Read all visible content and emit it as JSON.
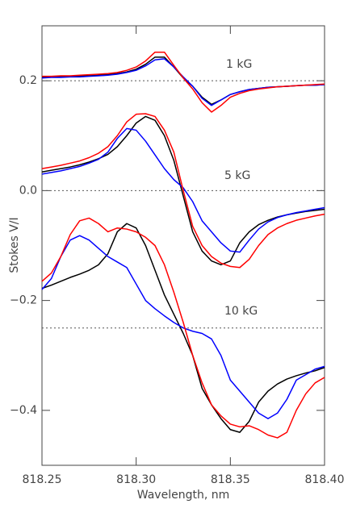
{
  "chart_data": {
    "type": "line",
    "xlabel": "Wavelength, nm",
    "ylabel": "Stokes V/I",
    "annotations": [
      "1 kG",
      "5 kG",
      "10 kG"
    ],
    "hlines": [
      0.2,
      0,
      -0.25
    ],
    "xlim": [
      818.25,
      818.4
    ],
    "ylim": [
      -0.5,
      0.3
    ],
    "xticks": [
      818.25,
      {
        "value": 818.3,
        "label": "818.30"
      },
      818.35,
      {
        "value": 818.4,
        "label": "818.40"
      }
    ],
    "yticks": [
      {
        "value": -0.4,
        "label": "−0.4"
      },
      {
        "value": -0.2,
        "label": "−0.2"
      },
      {
        "value": 0,
        "label": "0.0"
      },
      0.2
    ],
    "x": [
      818.25,
      818.255,
      818.26,
      818.265,
      818.27,
      818.275,
      818.28,
      818.285,
      818.29,
      818.295,
      818.3,
      818.305,
      818.31,
      818.315,
      818.32,
      818.325,
      818.33,
      818.335,
      818.34,
      818.345,
      818.35,
      818.355,
      818.36,
      818.365,
      818.37,
      818.375,
      818.38,
      818.385,
      818.39,
      818.395,
      818.4
    ],
    "series": [
      {
        "color": "#000000",
        "values": [
          0.207,
          0.207,
          0.208,
          0.208,
          0.209,
          0.209,
          0.21,
          0.211,
          0.213,
          0.216,
          0.221,
          0.23,
          0.243,
          0.243,
          0.225,
          0.205,
          0.19,
          0.17,
          0.157,
          0.165,
          0.175,
          0.18,
          0.184,
          0.186,
          0.188,
          0.189,
          0.19,
          0.191,
          0.192,
          0.192,
          0.193
        ]
      },
      {
        "color": "#0000ff",
        "values": [
          0.205,
          0.206,
          0.206,
          0.207,
          0.207,
          0.208,
          0.209,
          0.21,
          0.212,
          0.215,
          0.219,
          0.227,
          0.238,
          0.24,
          0.225,
          0.207,
          0.19,
          0.168,
          0.155,
          0.165,
          0.175,
          0.18,
          0.184,
          0.186,
          0.188,
          0.189,
          0.19,
          0.191,
          0.192,
          0.192,
          0.193
        ]
      },
      {
        "color": "#ff0000",
        "values": [
          0.208,
          0.208,
          0.209,
          0.209,
          0.21,
          0.211,
          0.212,
          0.213,
          0.215,
          0.219,
          0.225,
          0.236,
          0.252,
          0.252,
          0.228,
          0.205,
          0.185,
          0.16,
          0.143,
          0.155,
          0.17,
          0.177,
          0.182,
          0.185,
          0.187,
          0.189,
          0.19,
          0.191,
          0.192,
          0.193,
          0.194
        ]
      },
      {
        "color": "#000000",
        "values": [
          0.034,
          0.037,
          0.04,
          0.043,
          0.047,
          0.052,
          0.058,
          0.066,
          0.08,
          0.1,
          0.123,
          0.135,
          0.128,
          0.1,
          0.055,
          -0.01,
          -0.075,
          -0.11,
          -0.128,
          -0.135,
          -0.128,
          -0.095,
          -0.075,
          -0.062,
          -0.054,
          -0.048,
          -0.044,
          -0.041,
          -0.038,
          -0.036,
          -0.034
        ]
      },
      {
        "color": "#0000ff",
        "values": [
          0.03,
          0.033,
          0.036,
          0.04,
          0.044,
          0.05,
          0.057,
          0.07,
          0.095,
          0.113,
          0.11,
          0.09,
          0.065,
          0.04,
          0.02,
          0.005,
          -0.02,
          -0.055,
          -0.075,
          -0.095,
          -0.11,
          -0.112,
          -0.09,
          -0.07,
          -0.057,
          -0.049,
          -0.044,
          -0.04,
          -0.037,
          -0.034,
          -0.031
        ]
      },
      {
        "color": "#ff0000",
        "values": [
          0.04,
          0.043,
          0.046,
          0.05,
          0.054,
          0.06,
          0.068,
          0.08,
          0.1,
          0.125,
          0.139,
          0.14,
          0.135,
          0.11,
          0.07,
          0.0,
          -0.065,
          -0.1,
          -0.12,
          -0.132,
          -0.138,
          -0.14,
          -0.125,
          -0.1,
          -0.08,
          -0.068,
          -0.06,
          -0.054,
          -0.05,
          -0.046,
          -0.043
        ]
      },
      {
        "color": "#000000",
        "values": [
          -0.178,
          -0.172,
          -0.165,
          -0.158,
          -0.152,
          -0.145,
          -0.135,
          -0.115,
          -0.075,
          -0.06,
          -0.068,
          -0.1,
          -0.145,
          -0.19,
          -0.225,
          -0.26,
          -0.3,
          -0.36,
          -0.39,
          -0.415,
          -0.435,
          -0.44,
          -0.42,
          -0.385,
          -0.365,
          -0.352,
          -0.343,
          -0.337,
          -0.332,
          -0.328,
          -0.322
        ]
      },
      {
        "color": "#0000ff",
        "values": [
          -0.18,
          -0.16,
          -0.12,
          -0.09,
          -0.082,
          -0.09,
          -0.105,
          -0.12,
          -0.13,
          -0.14,
          -0.17,
          -0.2,
          -0.215,
          -0.228,
          -0.24,
          -0.25,
          -0.256,
          -0.26,
          -0.27,
          -0.3,
          -0.345,
          -0.365,
          -0.385,
          -0.405,
          -0.415,
          -0.405,
          -0.38,
          -0.345,
          -0.335,
          -0.325,
          -0.32
        ]
      },
      {
        "color": "#ff0000",
        "values": [
          -0.165,
          -0.15,
          -0.12,
          -0.08,
          -0.055,
          -0.05,
          -0.06,
          -0.075,
          -0.068,
          -0.07,
          -0.075,
          -0.085,
          -0.1,
          -0.135,
          -0.185,
          -0.24,
          -0.3,
          -0.35,
          -0.39,
          -0.41,
          -0.425,
          -0.43,
          -0.428,
          -0.435,
          -0.445,
          -0.45,
          -0.44,
          -0.4,
          -0.37,
          -0.35,
          -0.34
        ]
      }
    ]
  }
}
